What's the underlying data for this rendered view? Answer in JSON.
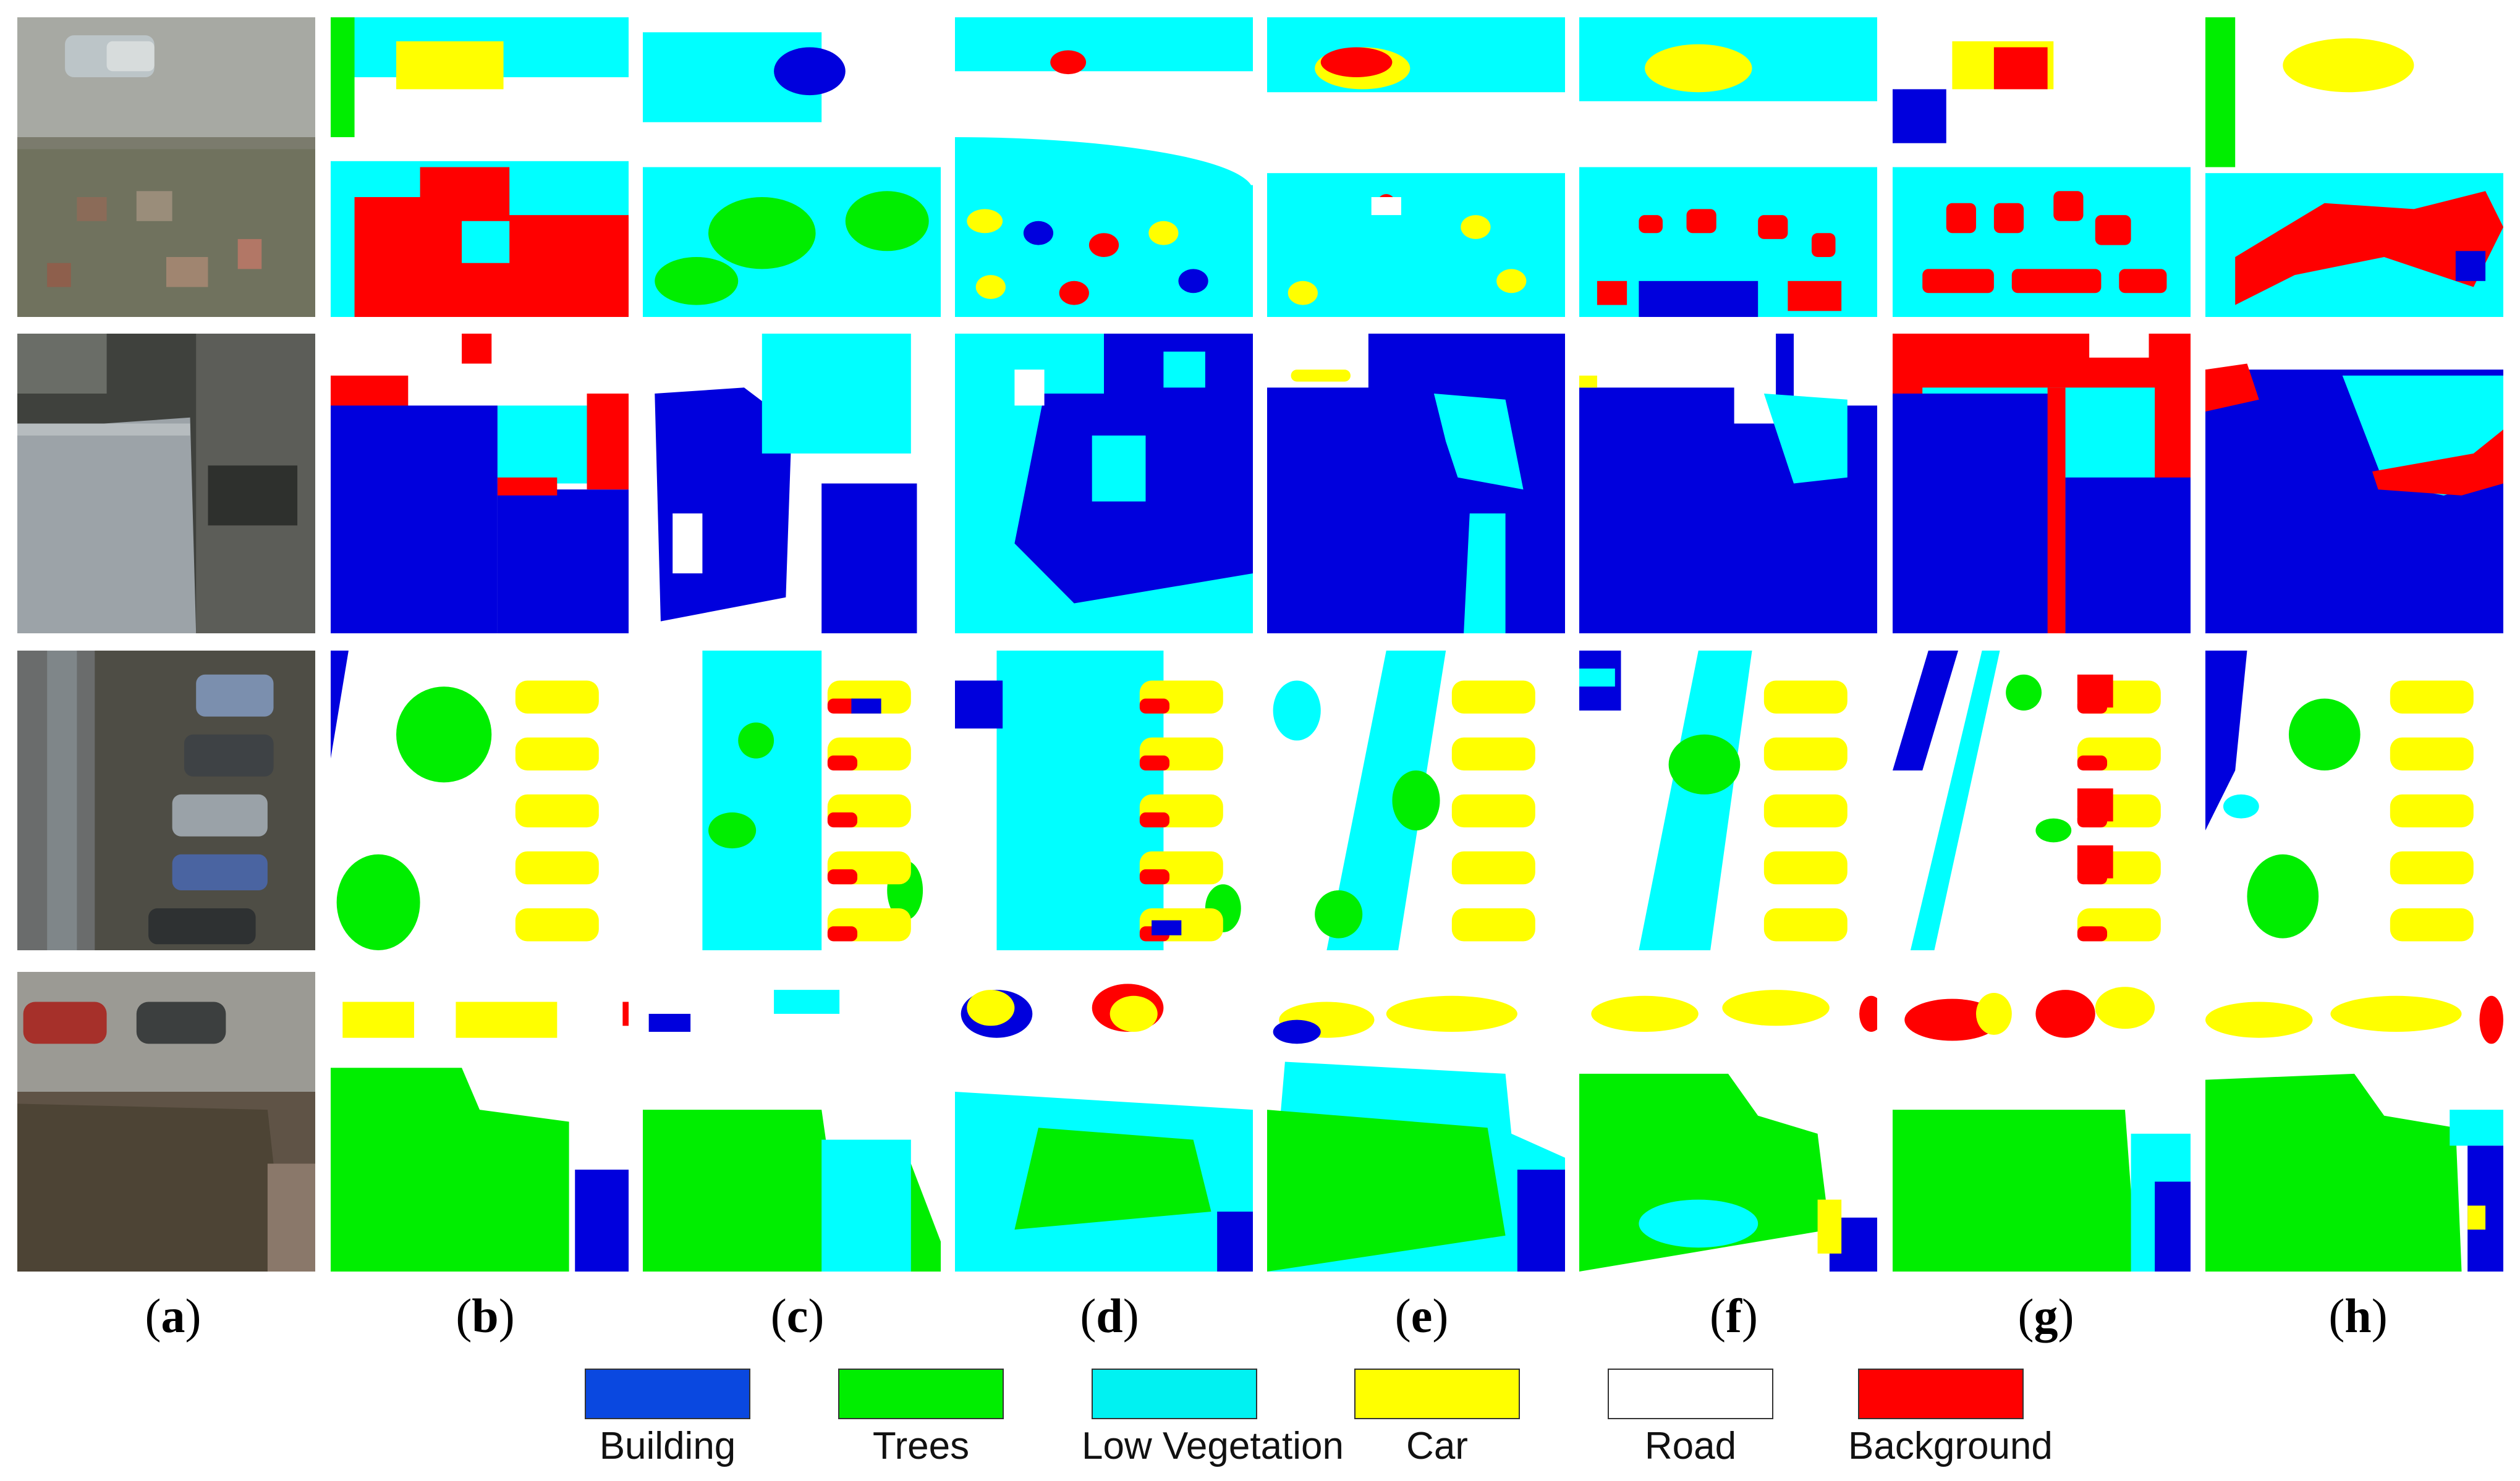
{
  "column_labels": [
    "a",
    "b",
    "c",
    "d",
    "e",
    "f",
    "g",
    "h"
  ],
  "legend": [
    {
      "label": "Building",
      "color": "#0a48e0"
    },
    {
      "label": "Trees",
      "color": "#00ee00"
    },
    {
      "label": "Low Vegetation",
      "color": "#00f2f2"
    },
    {
      "label": "Car",
      "color": "#ffff00"
    },
    {
      "label": "Road",
      "color": "#ffffff"
    },
    {
      "label": "Background",
      "color": "#ff0000"
    }
  ],
  "class_colors": {
    "building": "#0000dd",
    "trees": "#00ee00",
    "lowveg": "#00ffff",
    "car": "#ffff00",
    "road": "#ffffff",
    "background": "#ff0000"
  },
  "row_count": 4,
  "aerial_photo_rows": [
    "street-with-van-and-garden",
    "rooftop",
    "parked-cars",
    "red-cars-and-tree"
  ]
}
